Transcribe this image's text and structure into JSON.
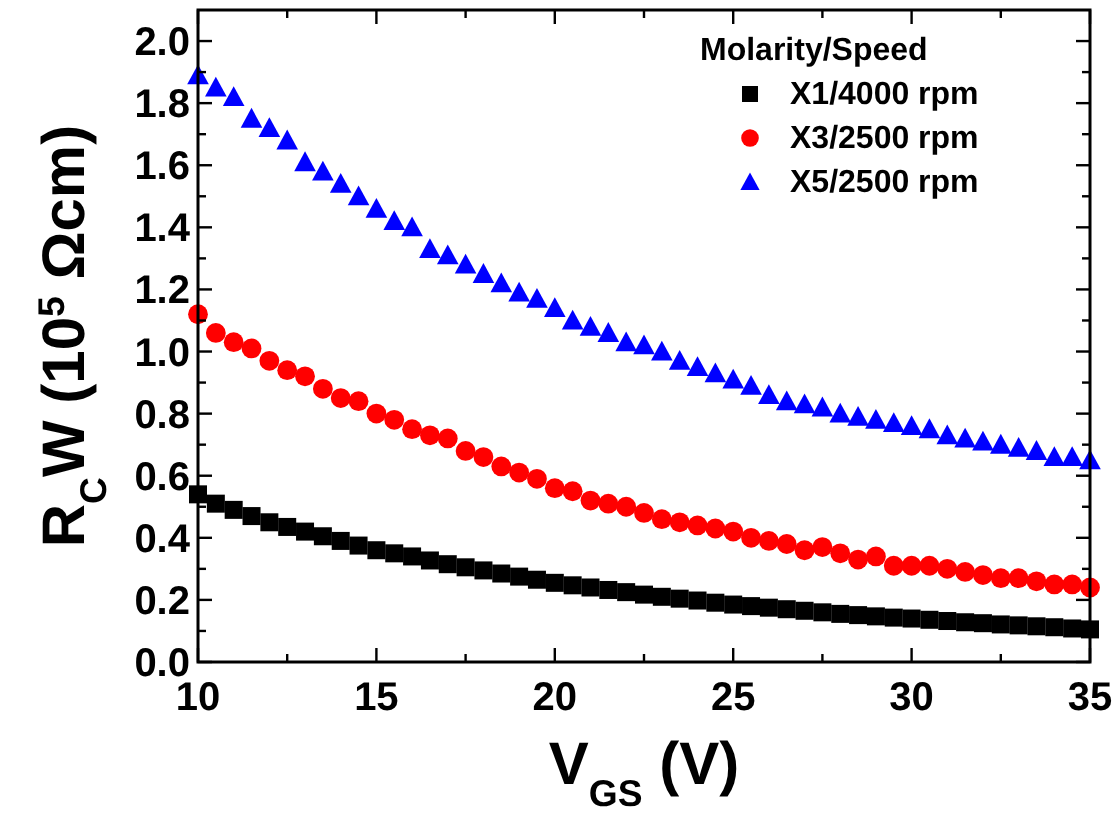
{
  "chart_data": {
    "type": "scatter",
    "xlabel": "V$_{GS}$ (V)",
    "ylabel": "R$_{C}$W (10$^{5}$ Ωcm)",
    "legend_title": "Molarity/Speed",
    "legend": "top right",
    "x": [
      10,
      10.5,
      11,
      11.5,
      12,
      12.5,
      13,
      13.5,
      14,
      14.5,
      15,
      15.5,
      16,
      16.5,
      17,
      17.5,
      18,
      18.5,
      19,
      19.5,
      20,
      20.5,
      21,
      21.5,
      22,
      22.5,
      23,
      23.5,
      24,
      24.5,
      25,
      25.5,
      26,
      26.5,
      27,
      27.5,
      28,
      28.5,
      29,
      29.5,
      30,
      30.5,
      31,
      31.5,
      32,
      32.5,
      33,
      33.5,
      34,
      34.5,
      35
    ],
    "xlim": [
      10,
      35
    ],
    "xticks": [
      10,
      {
        "value": 12.5,
        "label": null
      },
      15,
      {
        "value": 17.5,
        "label": null
      },
      20,
      {
        "value": 22.5,
        "label": null
      },
      25,
      {
        "value": 27.5,
        "label": null
      },
      30,
      {
        "value": 32.5,
        "label": null
      },
      35
    ],
    "ylim": [
      0,
      2.1
    ],
    "yticks": [
      {
        "value": 0,
        "label": "0.0"
      },
      {
        "value": 0.1,
        "label": null
      },
      {
        "value": 0.2,
        "label": "0.2"
      },
      {
        "value": 0.3,
        "label": null
      },
      {
        "value": 0.4,
        "label": "0.4"
      },
      {
        "value": 0.5,
        "label": null
      },
      {
        "value": 0.6,
        "label": "0.6"
      },
      {
        "value": 0.7,
        "label": null
      },
      {
        "value": 0.8,
        "label": "0.8"
      },
      {
        "value": 0.9,
        "label": null
      },
      {
        "value": 1.0,
        "label": "1.0"
      },
      {
        "value": 1.1,
        "label": null
      },
      {
        "value": 1.2,
        "label": "1.2"
      },
      {
        "value": 1.3,
        "label": null
      },
      {
        "value": 1.4,
        "label": "1.4"
      },
      {
        "value": 1.5,
        "label": null
      },
      {
        "value": 1.6,
        "label": "1.6"
      },
      {
        "value": 1.7,
        "label": null
      },
      {
        "value": 1.8,
        "label": "1.8"
      },
      {
        "value": 1.9,
        "label": null
      },
      {
        "value": 2.0,
        "label": "2.0"
      }
    ],
    "series": [
      {
        "name": "X1/4000 rpm",
        "color": "#000000",
        "marker": "square",
        "values": [
          0.54,
          0.51,
          0.49,
          0.47,
          0.45,
          0.435,
          0.42,
          0.405,
          0.39,
          0.375,
          0.36,
          0.35,
          0.34,
          0.327,
          0.315,
          0.305,
          0.295,
          0.285,
          0.275,
          0.265,
          0.255,
          0.247,
          0.24,
          0.232,
          0.225,
          0.217,
          0.21,
          0.204,
          0.198,
          0.191,
          0.185,
          0.18,
          0.175,
          0.17,
          0.165,
          0.16,
          0.155,
          0.151,
          0.147,
          0.143,
          0.14,
          0.136,
          0.132,
          0.128,
          0.125,
          0.121,
          0.118,
          0.115,
          0.112,
          0.108,
          0.105
        ]
      },
      {
        "name": "X3/2500 rpm",
        "color": "#ff0000",
        "marker": "circle",
        "values": [
          1.12,
          1.06,
          1.03,
          1.01,
          0.97,
          0.94,
          0.92,
          0.88,
          0.85,
          0.84,
          0.8,
          0.78,
          0.75,
          0.73,
          0.72,
          0.68,
          0.66,
          0.63,
          0.61,
          0.59,
          0.56,
          0.55,
          0.52,
          0.51,
          0.5,
          0.48,
          0.46,
          0.45,
          0.44,
          0.43,
          0.42,
          0.4,
          0.39,
          0.38,
          0.36,
          0.37,
          0.35,
          0.33,
          0.34,
          0.31,
          0.31,
          0.31,
          0.3,
          0.29,
          0.28,
          0.27,
          0.27,
          0.26,
          0.25,
          0.25,
          0.24
        ]
      },
      {
        "name": "X5/2500 rpm",
        "color": "#0000ff",
        "marker": "triangle",
        "values": [
          1.89,
          1.85,
          1.82,
          1.75,
          1.72,
          1.68,
          1.61,
          1.58,
          1.54,
          1.5,
          1.46,
          1.42,
          1.4,
          1.33,
          1.31,
          1.28,
          1.25,
          1.22,
          1.19,
          1.17,
          1.14,
          1.1,
          1.08,
          1.06,
          1.03,
          1.02,
          1.0,
          0.97,
          0.95,
          0.93,
          0.91,
          0.89,
          0.86,
          0.84,
          0.83,
          0.82,
          0.8,
          0.79,
          0.78,
          0.77,
          0.76,
          0.75,
          0.73,
          0.72,
          0.71,
          0.7,
          0.69,
          0.68,
          0.66,
          0.66,
          0.65
        ]
      }
    ]
  }
}
